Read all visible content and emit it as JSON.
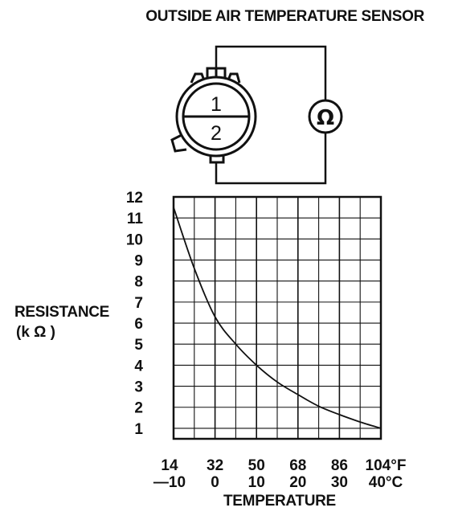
{
  "title": "OUTSIDE AIR TEMPERATURE SENSOR",
  "connector": {
    "terminal_1": "1",
    "terminal_2": "2",
    "meter_symbol": "Ω"
  },
  "chart_data": {
    "type": "line",
    "xlabel": "TEMPERATURE",
    "ylabel": "RESISTANCE",
    "ylabel_unit": "(k Ω )",
    "x_ticks_f": [
      "14",
      "32",
      "50",
      "68",
      "86",
      "104°F"
    ],
    "x_ticks_c": [
      "—10",
      "0",
      "10",
      "20",
      "30",
      "40°C"
    ],
    "y_ticks": [
      "1",
      "2",
      "3",
      "4",
      "5",
      "6",
      "7",
      "8",
      "9",
      "10",
      "11",
      "12"
    ],
    "xlim_c": [
      -10,
      40
    ],
    "ylim": [
      0.5,
      12
    ],
    "grid": true,
    "series": [
      {
        "x_c": [
          -10,
          -5,
          0,
          5,
          10,
          15,
          20,
          25,
          30,
          35,
          40
        ],
        "values": [
          11.5,
          8.6,
          6.3,
          5.0,
          4.0,
          3.2,
          2.6,
          2.05,
          1.65,
          1.3,
          1.0
        ]
      }
    ]
  }
}
